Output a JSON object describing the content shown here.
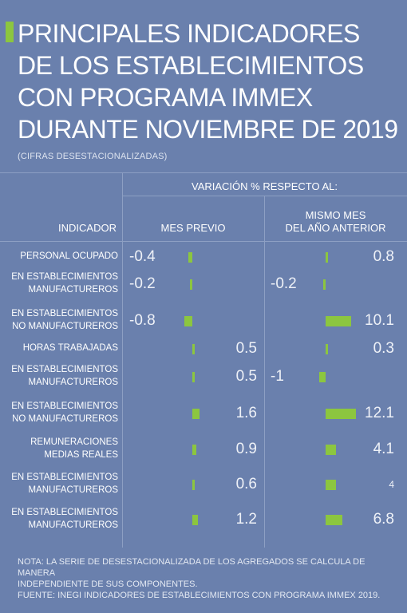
{
  "header": {
    "title_lines": [
      "PRINCIPALES INDICADORES",
      "DE LOS ESTABLECIMIENTOS",
      "CON PROGRAMA IMMEX",
      "DURANTE NOVIEMBRE DE 2019"
    ],
    "subtitle": "(CIFRAS DESESTACIONALIZADAS)"
  },
  "columns": {
    "variation": "VARIACIÓN % RESPECTO AL:",
    "indicator": "INDICADOR",
    "previous_month": "MES PREVIO",
    "same_month_line1": "MISMO MES",
    "same_month_line2": "DEL AÑO ANTERIOR"
  },
  "colors": {
    "background": "#6a80ad",
    "bar": "#8cc63f",
    "accent": "#8cc63f"
  },
  "chart_data": {
    "type": "bar",
    "categories": [
      [
        "PERSONAL OCUPADO"
      ],
      [
        "EN ESTABLECIMIENTOS",
        "MANUFACTUREROS"
      ],
      [
        "EN ESTABLECIMIENTOS",
        "NO MANUFACTUREROS"
      ],
      [
        "HORAS TRABAJADAS"
      ],
      [
        "EN ESTABLECIMIENTOS",
        "MANUFACTUREROS"
      ],
      [
        "EN ESTABLECIMIENTOS",
        "NO MANUFACTUREROS"
      ],
      [
        "REMUNERACIONES",
        "MEDIAS REALES"
      ],
      [
        "EN ESTABLECIMIENTOS",
        "MANUFACTUREROS"
      ],
      [
        "EN ESTABLECIMIENTOS",
        "MANUFACTUREROS"
      ]
    ],
    "series": [
      {
        "name": "MES PREVIO",
        "values": [
          -0.4,
          -0.2,
          -0.8,
          0.5,
          0.5,
          1.6,
          0.9,
          0.6,
          1.2
        ],
        "labels": [
          "-0.4",
          "-0.2",
          "-0.8",
          "0.5",
          "0.5",
          "1.6",
          "0.9",
          "0.6",
          "1.2"
        ]
      },
      {
        "name": "MISMO MES DEL AÑO ANTERIOR",
        "values": [
          0.8,
          -0.2,
          10.1,
          0.3,
          -1,
          12.1,
          4.1,
          4,
          6.8
        ],
        "labels": [
          "0.8",
          "-0.2",
          "10.1",
          "0.3",
          "-1",
          "12.1",
          "4.1",
          "4",
          "6.8"
        ]
      }
    ]
  },
  "notes": {
    "note_line1": "NOTA: LA SERIE DE DESESTACIONALIZADA DE LOS AGREGADOS SE CALCULA DE MANERA",
    "note_line2": "INDEPENDIENTE DE SUS COMPONENTES.",
    "source": "FUENTE: INEGI INDICADORES DE ESTABLECIMIENTOS CON PROGRAMA IMMEX 2019."
  }
}
